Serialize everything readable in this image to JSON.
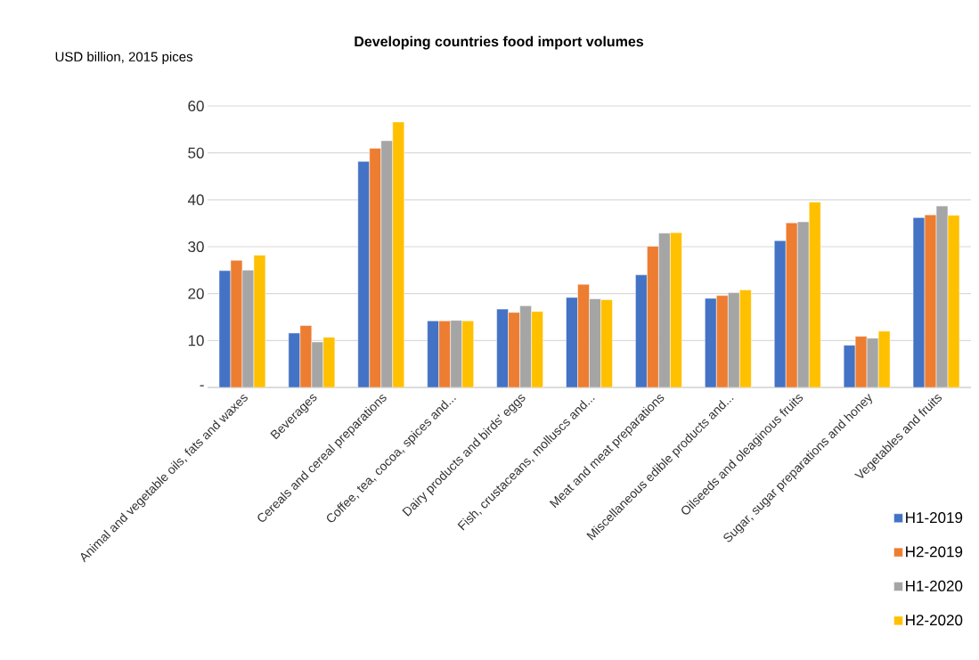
{
  "chart_data": {
    "type": "bar",
    "title": "Developing countries food import volumes",
    "ylabel": "USD billion, 2015 pices",
    "categories": [
      "Animal and vegetable oils, fats and waxes",
      "Beverages",
      "Cereals and cereal preparations",
      "Coffee, tea, cocoa, spices and...",
      "Dairy products and birds' eggs",
      "Fish, crustaceans, molluscs and...",
      "Meat and meat preparations",
      "Miscellaneous edible products and...",
      "Oilseeds and oleaginous fruits",
      "Sugar, sugar preparations and honey",
      "Vegetables and fruits"
    ],
    "series": [
      {
        "name": "H1-2019",
        "color": "#4472c4",
        "values": [
          24.9,
          11.6,
          48.2,
          14.2,
          16.7,
          19.2,
          24.0,
          19.0,
          31.3,
          9.0,
          36.2
        ]
      },
      {
        "name": "H2-2019",
        "color": "#ed7d31",
        "values": [
          27.1,
          13.2,
          51.0,
          14.2,
          16.0,
          22.0,
          30.1,
          19.6,
          35.1,
          10.9,
          36.8
        ]
      },
      {
        "name": "H1-2020",
        "color": "#a5a5a5",
        "values": [
          25.0,
          9.7,
          52.6,
          14.3,
          17.4,
          18.9,
          32.9,
          20.2,
          35.3,
          10.5,
          38.7
        ]
      },
      {
        "name": "H2-2020",
        "color": "#ffc000",
        "values": [
          28.2,
          10.7,
          56.6,
          14.2,
          16.2,
          18.7,
          33.0,
          20.8,
          39.5,
          12.0,
          36.7
        ]
      }
    ],
    "ylim": [
      0,
      60
    ],
    "yticks": [
      {
        "value": 0,
        "label": "-"
      },
      10,
      20,
      30,
      40,
      50,
      60
    ],
    "grid": "y",
    "legend": "bottom right"
  }
}
